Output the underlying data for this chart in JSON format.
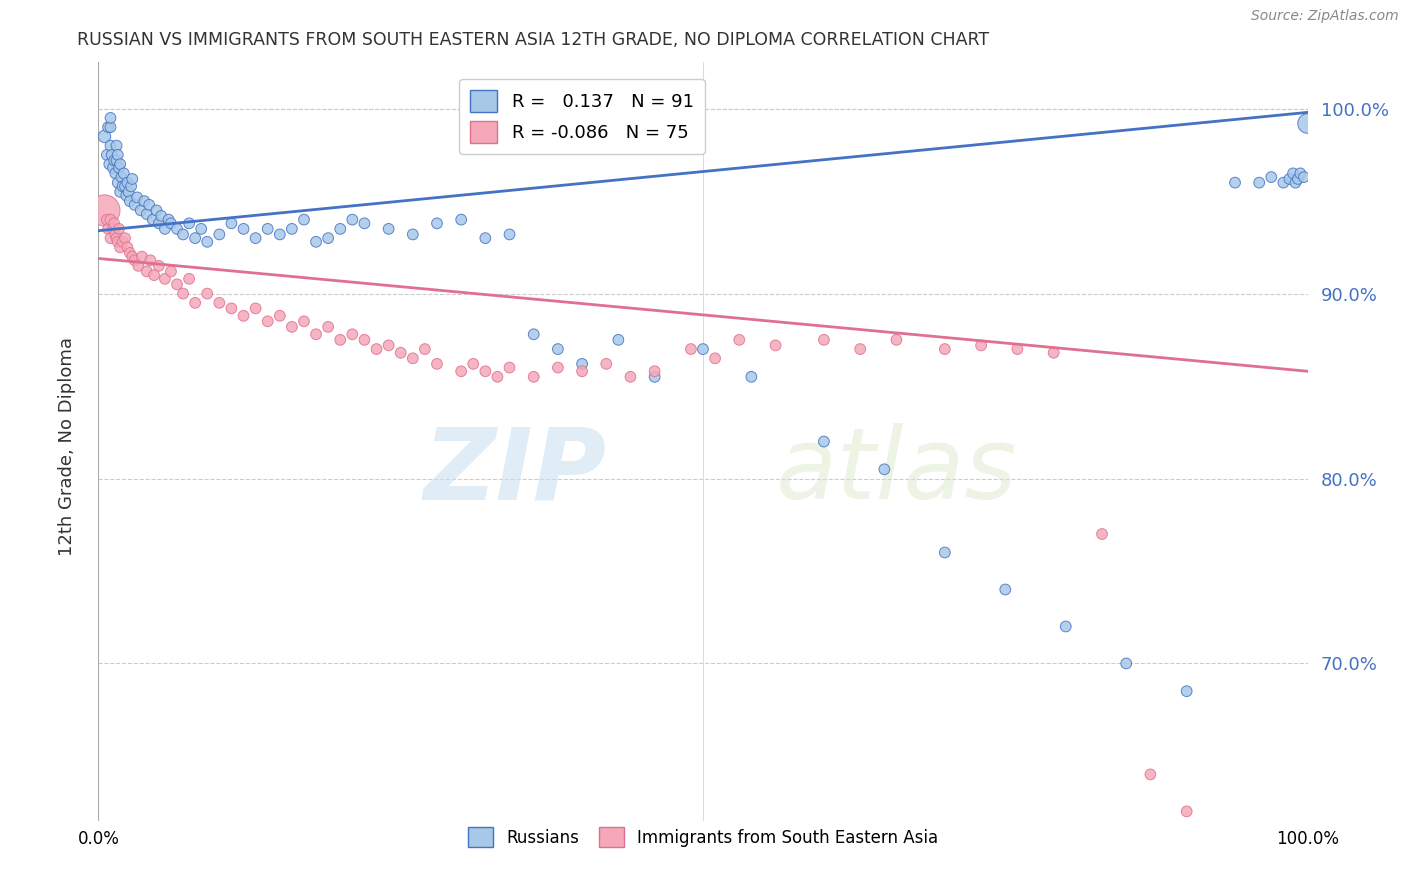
{
  "title": "RUSSIAN VS IMMIGRANTS FROM SOUTH EASTERN ASIA 12TH GRADE, NO DIPLOMA CORRELATION CHART",
  "source": "Source: ZipAtlas.com",
  "ylabel": "12th Grade, No Diploma",
  "xlim": [
    0.0,
    1.0
  ],
  "ylim": [
    0.615,
    1.025
  ],
  "ytick_labels": [
    "70.0%",
    "80.0%",
    "90.0%",
    "100.0%"
  ],
  "ytick_values": [
    0.7,
    0.8,
    0.9,
    1.0
  ],
  "blue_r": 0.137,
  "blue_n": 91,
  "pink_r": -0.086,
  "pink_n": 75,
  "blue_line_color": "#4472c4",
  "pink_line_color": "#e07090",
  "blue_dot_color": "#a8c8e8",
  "pink_dot_color": "#f4a8b8",
  "watermark": "ZIPatlas",
  "blue_line_start_y": 0.934,
  "blue_line_end_y": 0.998,
  "pink_line_start_y": 0.919,
  "pink_line_end_y": 0.858,
  "blue_scatter_x": [
    0.005,
    0.007,
    0.008,
    0.009,
    0.01,
    0.01,
    0.01,
    0.011,
    0.012,
    0.013,
    0.014,
    0.015,
    0.015,
    0.016,
    0.016,
    0.017,
    0.018,
    0.018,
    0.019,
    0.02,
    0.021,
    0.022,
    0.023,
    0.024,
    0.025,
    0.026,
    0.027,
    0.028,
    0.03,
    0.032,
    0.035,
    0.038,
    0.04,
    0.042,
    0.045,
    0.048,
    0.05,
    0.052,
    0.055,
    0.058,
    0.06,
    0.065,
    0.07,
    0.075,
    0.08,
    0.085,
    0.09,
    0.1,
    0.11,
    0.12,
    0.13,
    0.14,
    0.15,
    0.16,
    0.17,
    0.18,
    0.19,
    0.2,
    0.21,
    0.22,
    0.24,
    0.26,
    0.28,
    0.3,
    0.32,
    0.34,
    0.36,
    0.38,
    0.4,
    0.43,
    0.46,
    0.5,
    0.54,
    0.6,
    0.65,
    0.7,
    0.75,
    0.8,
    0.85,
    0.9,
    0.94,
    0.96,
    0.97,
    0.98,
    0.985,
    0.988,
    0.99,
    0.992,
    0.994,
    0.997,
    1.0
  ],
  "blue_scatter_y": [
    0.985,
    0.975,
    0.99,
    0.97,
    0.98,
    0.99,
    0.995,
    0.975,
    0.968,
    0.972,
    0.965,
    0.972,
    0.98,
    0.96,
    0.975,
    0.968,
    0.955,
    0.97,
    0.963,
    0.958,
    0.965,
    0.958,
    0.953,
    0.96,
    0.955,
    0.95,
    0.958,
    0.962,
    0.948,
    0.952,
    0.945,
    0.95,
    0.943,
    0.948,
    0.94,
    0.945,
    0.938,
    0.942,
    0.935,
    0.94,
    0.938,
    0.935,
    0.932,
    0.938,
    0.93,
    0.935,
    0.928,
    0.932,
    0.938,
    0.935,
    0.93,
    0.935,
    0.932,
    0.935,
    0.94,
    0.928,
    0.93,
    0.935,
    0.94,
    0.938,
    0.935,
    0.932,
    0.938,
    0.94,
    0.93,
    0.932,
    0.878,
    0.87,
    0.862,
    0.875,
    0.855,
    0.87,
    0.855,
    0.82,
    0.805,
    0.76,
    0.74,
    0.72,
    0.7,
    0.685,
    0.96,
    0.96,
    0.963,
    0.96,
    0.962,
    0.965,
    0.96,
    0.962,
    0.965,
    0.963,
    0.992
  ],
  "blue_scatter_sizes": [
    80,
    60,
    60,
    60,
    60,
    60,
    60,
    60,
    60,
    60,
    60,
    60,
    60,
    60,
    60,
    60,
    60,
    60,
    60,
    60,
    60,
    60,
    60,
    60,
    60,
    60,
    60,
    60,
    60,
    60,
    60,
    60,
    60,
    60,
    60,
    60,
    60,
    60,
    60,
    60,
    60,
    60,
    60,
    60,
    60,
    60,
    60,
    60,
    60,
    60,
    60,
    60,
    60,
    60,
    60,
    60,
    60,
    60,
    60,
    60,
    60,
    60,
    60,
    60,
    60,
    60,
    60,
    60,
    60,
    60,
    60,
    60,
    60,
    60,
    60,
    60,
    60,
    60,
    60,
    60,
    60,
    60,
    60,
    60,
    60,
    60,
    60,
    60,
    60,
    60,
    200
  ],
  "pink_scatter_x": [
    0.005,
    0.007,
    0.008,
    0.01,
    0.01,
    0.012,
    0.013,
    0.014,
    0.015,
    0.016,
    0.017,
    0.018,
    0.02,
    0.022,
    0.024,
    0.026,
    0.028,
    0.03,
    0.033,
    0.036,
    0.04,
    0.043,
    0.046,
    0.05,
    0.055,
    0.06,
    0.065,
    0.07,
    0.075,
    0.08,
    0.09,
    0.1,
    0.11,
    0.12,
    0.13,
    0.14,
    0.15,
    0.16,
    0.17,
    0.18,
    0.19,
    0.2,
    0.21,
    0.22,
    0.23,
    0.24,
    0.25,
    0.26,
    0.27,
    0.28,
    0.3,
    0.31,
    0.32,
    0.33,
    0.34,
    0.36,
    0.38,
    0.4,
    0.42,
    0.44,
    0.46,
    0.49,
    0.51,
    0.53,
    0.56,
    0.6,
    0.63,
    0.66,
    0.7,
    0.73,
    0.76,
    0.79,
    0.83,
    0.87,
    0.9
  ],
  "pink_scatter_y": [
    0.945,
    0.94,
    0.935,
    0.94,
    0.93,
    0.935,
    0.938,
    0.932,
    0.93,
    0.928,
    0.935,
    0.925,
    0.928,
    0.93,
    0.925,
    0.922,
    0.92,
    0.918,
    0.915,
    0.92,
    0.912,
    0.918,
    0.91,
    0.915,
    0.908,
    0.912,
    0.905,
    0.9,
    0.908,
    0.895,
    0.9,
    0.895,
    0.892,
    0.888,
    0.892,
    0.885,
    0.888,
    0.882,
    0.885,
    0.878,
    0.882,
    0.875,
    0.878,
    0.875,
    0.87,
    0.872,
    0.868,
    0.865,
    0.87,
    0.862,
    0.858,
    0.862,
    0.858,
    0.855,
    0.86,
    0.855,
    0.86,
    0.858,
    0.862,
    0.855,
    0.858,
    0.87,
    0.865,
    0.875,
    0.872,
    0.875,
    0.87,
    0.875,
    0.87,
    0.872,
    0.87,
    0.868,
    0.77,
    0.64,
    0.62
  ],
  "pink_scatter_sizes": [
    500,
    60,
    60,
    60,
    60,
    60,
    60,
    60,
    60,
    60,
    60,
    60,
    60,
    60,
    60,
    60,
    60,
    60,
    60,
    60,
    60,
    60,
    60,
    60,
    60,
    60,
    60,
    60,
    60,
    60,
    60,
    60,
    60,
    60,
    60,
    60,
    60,
    60,
    60,
    60,
    60,
    60,
    60,
    60,
    60,
    60,
    60,
    60,
    60,
    60,
    60,
    60,
    60,
    60,
    60,
    60,
    60,
    60,
    60,
    60,
    60,
    60,
    60,
    60,
    60,
    60,
    60,
    60,
    60,
    60,
    60,
    60,
    60,
    60,
    60
  ]
}
